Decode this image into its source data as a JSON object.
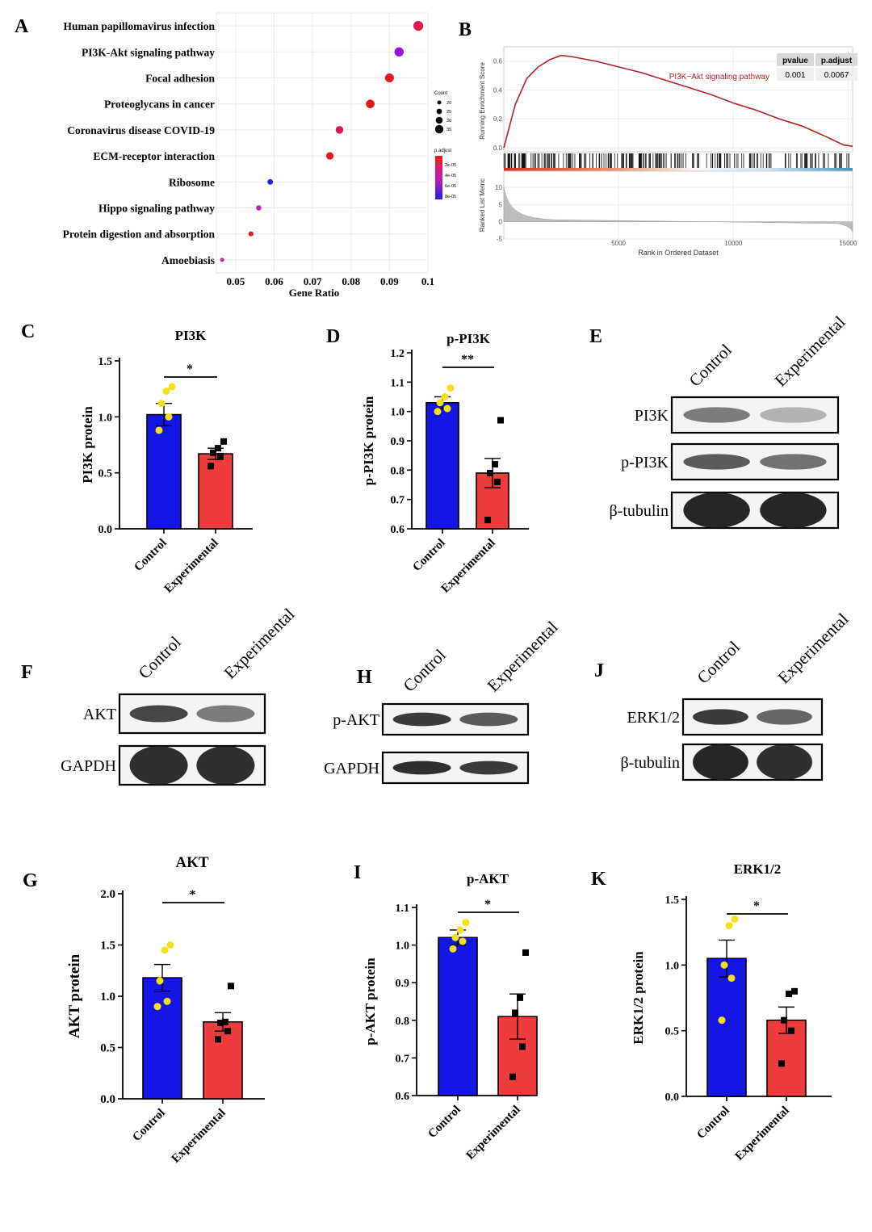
{
  "panels": {
    "A": "A",
    "B": "B",
    "C": "C",
    "D": "D",
    "E": "E",
    "F": "F",
    "G": "G",
    "H": "H",
    "I": "I",
    "J": "J",
    "K": "K"
  },
  "chart_data": [
    {
      "id": "A",
      "type": "scatter",
      "xlabel": "Gene Ratio",
      "xticks": [
        "0.05",
        "0.06",
        "0.07",
        "0.08",
        "0.09",
        "0.1"
      ],
      "xlim": [
        0.045,
        0.1
      ],
      "categories": [
        "Human papillomavirus infection",
        "PI3K-Akt signaling pathway",
        "Focal adhesion",
        "Proteoglycans in cancer",
        "Coronavirus disease COVID-19",
        "ECM-receptor interaction",
        "Ribosome",
        "Hippo signaling pathway",
        "Protein digestion and absorption",
        "Amoebiasis"
      ],
      "gene_ratio": [
        0.0975,
        0.0925,
        0.09,
        0.085,
        0.077,
        0.0745,
        0.059,
        0.056,
        0.054,
        0.0465
      ],
      "count": [
        36,
        34,
        33,
        32,
        29,
        28,
        22,
        21,
        20,
        17
      ],
      "p_adjust_color": [
        "#e0154a",
        "#9a10dc",
        "#e31a1c",
        "#e31a1c",
        "#d8184e",
        "#e31a1c",
        "#2020e8",
        "#c41fa8",
        "#e31a1c",
        "#d0208a"
      ],
      "legend": {
        "count_title": "Count",
        "count_values": [
          "20",
          "25",
          "30",
          "35"
        ],
        "padj_title": "p.adjust",
        "padj_values": [
          "2e-05",
          "4e-05",
          "6e-05",
          "8e-05"
        ]
      }
    },
    {
      "id": "B",
      "type": "line",
      "ylabel_top": "Running Enrichment Score",
      "ylabel_bottom": "Ranked List Metric",
      "xlabel": "Rank in Ordered Dataset",
      "xticks": [
        "5000",
        "10000",
        "15000"
      ],
      "yticks_top": [
        "0.0",
        "0.2",
        "0.4",
        "0.6"
      ],
      "yticks_bottom": [
        "-5",
        "0",
        "5",
        "10"
      ],
      "pathway_label": "PI3K−Akt signaling pathway",
      "table": {
        "headers": [
          "pvalue",
          "p.adjust"
        ],
        "values": [
          "0.001",
          "0.0067"
        ]
      },
      "curve_color": "#b22222",
      "x": [
        0,
        500,
        1000,
        1500,
        2000,
        2500,
        3000,
        4000,
        5000,
        6000,
        7000,
        8000,
        9000,
        10000,
        11000,
        12000,
        13000,
        14000,
        14800,
        15200
      ],
      "y": [
        0.0,
        0.3,
        0.48,
        0.56,
        0.61,
        0.64,
        0.63,
        0.6,
        0.56,
        0.52,
        0.47,
        0.42,
        0.37,
        0.31,
        0.26,
        0.2,
        0.15,
        0.08,
        0.02,
        0.01
      ]
    },
    {
      "id": "C",
      "type": "bar",
      "title": "PI3K",
      "ylabel": "PI3K protein",
      "categories": [
        "Control",
        "Experimental"
      ],
      "values": [
        1.02,
        0.67
      ],
      "sem": [
        0.1,
        0.05
      ],
      "ylim": [
        0,
        1.5
      ],
      "yticks": [
        "0.0",
        "0.5",
        "1.0",
        "1.5"
      ],
      "significance": "*",
      "points": [
        [
          0.88,
          1.0,
          1.12,
          1.23,
          1.27
        ],
        [
          0.56,
          0.65,
          0.68,
          0.72,
          0.78
        ]
      ]
    },
    {
      "id": "D",
      "type": "bar",
      "title": "p-PI3K",
      "ylabel": "p-PI3K protein",
      "categories": [
        "Control",
        "Experimental"
      ],
      "values": [
        1.03,
        0.79
      ],
      "sem": [
        0.02,
        0.05
      ],
      "ylim": [
        0.6,
        1.2
      ],
      "yticks": [
        "0.6",
        "0.7",
        "0.8",
        "0.9",
        "1.0",
        "1.1",
        "1.2"
      ],
      "significance": "**",
      "points": [
        [
          1.0,
          1.01,
          1.03,
          1.05,
          1.08
        ],
        [
          0.63,
          0.76,
          0.79,
          0.82,
          0.97
        ]
      ]
    },
    {
      "id": "G",
      "type": "bar",
      "title": "AKT",
      "ylabel": "AKT protein",
      "categories": [
        "Control",
        "Experimental"
      ],
      "values": [
        1.18,
        0.75
      ],
      "sem": [
        0.13,
        0.09
      ],
      "ylim": [
        0,
        2.0
      ],
      "yticks": [
        "0.0",
        "0.5",
        "1.0",
        "1.5",
        "2.0"
      ],
      "significance": "*",
      "points": [
        [
          0.9,
          0.95,
          1.15,
          1.45,
          1.5
        ],
        [
          0.58,
          0.66,
          0.74,
          0.75,
          1.1
        ]
      ]
    },
    {
      "id": "I",
      "type": "bar",
      "title": "p-AKT",
      "ylabel": "p-AKT protein",
      "categories": [
        "Control",
        "Experimental"
      ],
      "values": [
        1.02,
        0.81
      ],
      "sem": [
        0.02,
        0.06
      ],
      "ylim": [
        0.6,
        1.1
      ],
      "yticks": [
        "0.6",
        "0.7",
        "0.8",
        "0.9",
        "1.0",
        "1.1"
      ],
      "significance": "*",
      "points": [
        [
          0.99,
          1.01,
          1.02,
          1.04,
          1.06
        ],
        [
          0.65,
          0.73,
          0.82,
          0.86,
          0.98
        ]
      ]
    },
    {
      "id": "K",
      "type": "bar",
      "title": "ERK1/2",
      "ylabel": "ERK1/2 protein",
      "categories": [
        "Control",
        "Experimental"
      ],
      "values": [
        1.05,
        0.58
      ],
      "sem": [
        0.14,
        0.1
      ],
      "ylim": [
        0,
        1.5
      ],
      "yticks": [
        "0.0",
        "0.5",
        "1.0",
        "1.5"
      ],
      "significance": "*",
      "points": [
        [
          0.58,
          0.9,
          1.0,
          1.3,
          1.35
        ],
        [
          0.25,
          0.5,
          0.58,
          0.78,
          0.8
        ]
      ]
    }
  ],
  "bar_colors": {
    "control": "#1515e6",
    "experimental": "#ee3b3b",
    "control_dot": "#f5e11a",
    "experimental_dot": "#000000"
  },
  "blots": {
    "E": {
      "lanes": [
        "Control",
        "Experimental"
      ],
      "rows": [
        "PI3K",
        "p-PI3K",
        "β-tubulin"
      ]
    },
    "F": {
      "lanes": [
        "Control",
        "Experimental"
      ],
      "rows": [
        "AKT",
        "GAPDH"
      ]
    },
    "H": {
      "lanes": [
        "Control",
        "Experimental"
      ],
      "rows": [
        "p-AKT",
        "GAPDH"
      ]
    },
    "J": {
      "lanes": [
        "Control",
        "Experimental"
      ],
      "rows": [
        "ERK1/2",
        "β-tubulin"
      ]
    }
  }
}
